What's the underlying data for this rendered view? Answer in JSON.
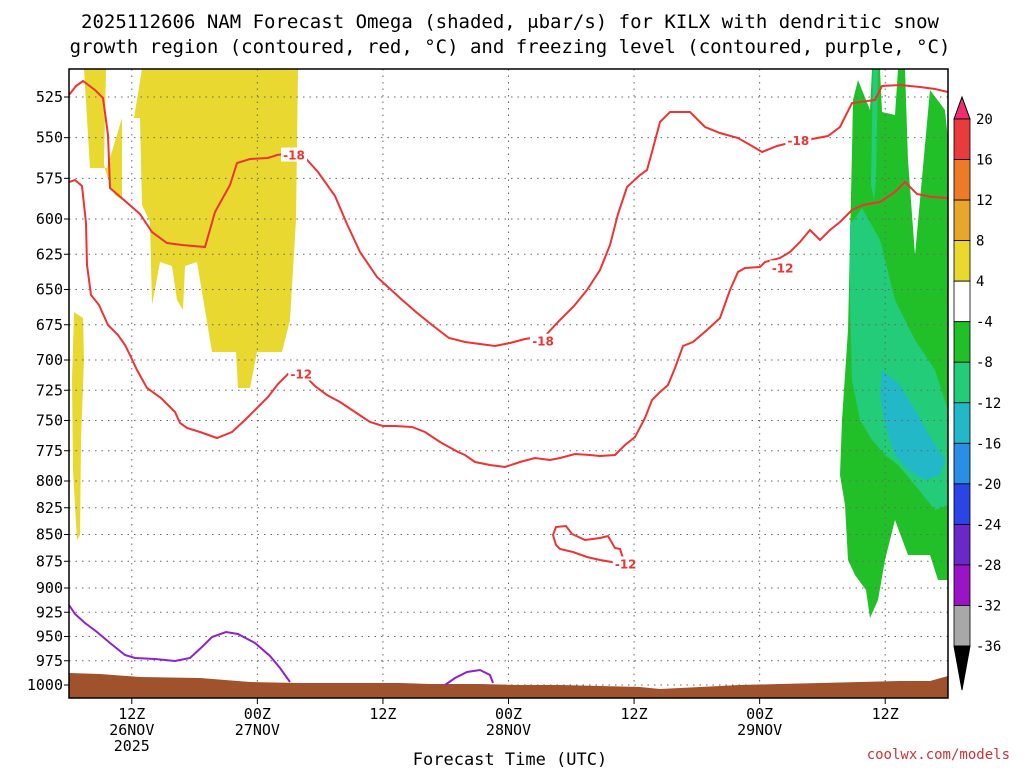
{
  "chart_data": {
    "type": "heatmap",
    "title_lines": [
      "2025112606 NAM Forecast Omega (shaded, μbar/s) for KILX with dendritic snow",
      "growth region (contoured, red, °C) and freezing level (contoured, purple, °C)"
    ],
    "xlabel": "Forecast Time (UTC)",
    "x_ticks": [
      {
        "h": 6,
        "lines": [
          "12Z",
          "26NOV",
          "2025"
        ]
      },
      {
        "h": 18,
        "lines": [
          "00Z",
          "27NOV"
        ]
      },
      {
        "h": 30,
        "lines": [
          "12Z"
        ]
      },
      {
        "h": 42,
        "lines": [
          "00Z",
          "28NOV"
        ]
      },
      {
        "h": 54,
        "lines": [
          "12Z"
        ]
      },
      {
        "h": 66,
        "lines": [
          "00Z",
          "29NOV"
        ]
      },
      {
        "h": 78,
        "lines": [
          "12Z"
        ]
      }
    ],
    "x_range_hours": [
      0,
      84
    ],
    "y_ticks": [
      "525",
      "550",
      "575",
      "600",
      "625",
      "650",
      "675",
      "700",
      "725",
      "750",
      "775",
      "800",
      "825",
      "850",
      "875",
      "900",
      "925",
      "950",
      "975",
      "1000"
    ],
    "y_range_hpa": [
      500,
      1010
    ],
    "grid": true,
    "colorbar": {
      "labels": [
        "20",
        "16",
        "12",
        "8",
        "4",
        "-4",
        "-8",
        "-12",
        "-16",
        "-20",
        "-24",
        "-28",
        "-32",
        "-36"
      ],
      "colors": [
        "#ee2e6e",
        "#e83c3c",
        "#ee7a28",
        "#e8a62c",
        "#e8d830",
        "#ffffff",
        "#22c028",
        "#22cc78",
        "#22b8c8",
        "#2a8ee6",
        "#2a44e6",
        "#6a28c8",
        "#9a14c6",
        "#a8a8a8",
        "#000000"
      ]
    },
    "contour_labels": [
      {
        "text": "-18",
        "h": 21.5,
        "p": 561
      },
      {
        "text": "-18",
        "h": 45.3,
        "p": 687
      },
      {
        "text": "-18",
        "h": 69.7,
        "p": 552
      },
      {
        "text": "-12",
        "h": 22.2,
        "p": 712
      },
      {
        "text": "-12",
        "h": 68.2,
        "p": 635
      },
      {
        "text": "-12",
        "h": 53.2,
        "p": 878
      }
    ],
    "credit": "coolwx.com/models"
  }
}
